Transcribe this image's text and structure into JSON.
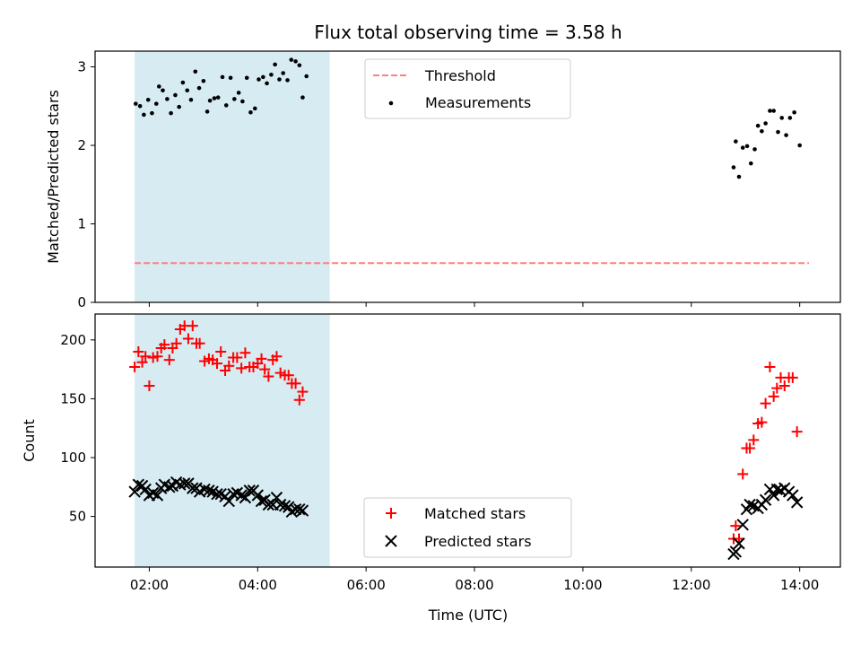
{
  "chart_data": {
    "title": "Flux total observing time = 3.58 h",
    "xlabel": "Time (UTC)",
    "x_ticks": [
      "02:00",
      "04:00",
      "06:00",
      "08:00",
      "10:00",
      "12:00",
      "14:00"
    ],
    "x_tick_values_hours": [
      2,
      4,
      6,
      8,
      10,
      12,
      14
    ],
    "xlim_hours": [
      1.0,
      14.75
    ],
    "shaded_interval_hours": [
      1.73,
      5.33
    ],
    "shade_color": "#add8e6",
    "panels": [
      {
        "type": "scatter",
        "ylabel": "Matched/Predicted stars",
        "ylim": [
          0,
          3.2
        ],
        "y_ticks": [
          0,
          1,
          2,
          3
        ],
        "legend_position": "top-center",
        "threshold": {
          "name": "Threshold",
          "value": 0.5,
          "x_range_hours": [
            1.73,
            14.17
          ],
          "color": "#ff7f7f",
          "style": "dashed"
        },
        "series": [
          {
            "name": "Measurements",
            "marker": "dot",
            "color": "#000000",
            "points": [
              [
                1.75,
                2.53
              ],
              [
                1.83,
                2.5
              ],
              [
                1.9,
                2.39
              ],
              [
                1.98,
                2.58
              ],
              [
                2.05,
                2.41
              ],
              [
                2.13,
                2.53
              ],
              [
                2.18,
                2.75
              ],
              [
                2.25,
                2.7
              ],
              [
                2.33,
                2.59
              ],
              [
                2.4,
                2.41
              ],
              [
                2.48,
                2.64
              ],
              [
                2.55,
                2.49
              ],
              [
                2.62,
                2.8
              ],
              [
                2.7,
                2.7
              ],
              [
                2.77,
                2.58
              ],
              [
                2.85,
                2.94
              ],
              [
                2.92,
                2.73
              ],
              [
                3.0,
                2.82
              ],
              [
                3.07,
                2.43
              ],
              [
                3.12,
                2.57
              ],
              [
                3.2,
                2.6
              ],
              [
                3.27,
                2.61
              ],
              [
                3.35,
                2.87
              ],
              [
                3.42,
                2.51
              ],
              [
                3.5,
                2.86
              ],
              [
                3.57,
                2.59
              ],
              [
                3.65,
                2.67
              ],
              [
                3.72,
                2.56
              ],
              [
                3.8,
                2.86
              ],
              [
                3.87,
                2.42
              ],
              [
                3.95,
                2.47
              ],
              [
                4.02,
                2.84
              ],
              [
                4.1,
                2.87
              ],
              [
                4.17,
                2.79
              ],
              [
                4.25,
                2.9
              ],
              [
                4.32,
                3.03
              ],
              [
                4.4,
                2.84
              ],
              [
                4.47,
                2.92
              ],
              [
                4.55,
                2.83
              ],
              [
                4.62,
                3.09
              ],
              [
                4.7,
                3.07
              ],
              [
                4.77,
                3.02
              ],
              [
                4.83,
                2.61
              ],
              [
                4.9,
                2.88
              ],
              [
                12.78,
                1.72
              ],
              [
                12.82,
                2.05
              ],
              [
                12.88,
                1.6
              ],
              [
                12.95,
                1.97
              ],
              [
                13.03,
                1.99
              ],
              [
                13.1,
                1.77
              ],
              [
                13.17,
                1.95
              ],
              [
                13.23,
                2.25
              ],
              [
                13.3,
                2.18
              ],
              [
                13.37,
                2.28
              ],
              [
                13.45,
                2.44
              ],
              [
                13.52,
                2.44
              ],
              [
                13.6,
                2.17
              ],
              [
                13.67,
                2.35
              ],
              [
                13.75,
                2.13
              ],
              [
                13.82,
                2.35
              ],
              [
                13.9,
                2.42
              ],
              [
                14.0,
                2.0
              ]
            ]
          }
        ]
      },
      {
        "type": "scatter",
        "ylabel": "Count",
        "ylim": [
          7,
          222
        ],
        "y_ticks": [
          50,
          100,
          150,
          200
        ],
        "legend_position": "bottom-center",
        "series": [
          {
            "name": "Matched stars",
            "marker": "plus",
            "color": "#ff0000",
            "points": [
              [
                1.73,
                177
              ],
              [
                1.8,
                190
              ],
              [
                1.87,
                181
              ],
              [
                1.93,
                186
              ],
              [
                2.0,
                161
              ],
              [
                2.07,
                185
              ],
              [
                2.15,
                186
              ],
              [
                2.22,
                193
              ],
              [
                2.28,
                196
              ],
              [
                2.37,
                183
              ],
              [
                2.43,
                193
              ],
              [
                2.5,
                197
              ],
              [
                2.57,
                209
              ],
              [
                2.65,
                212
              ],
              [
                2.72,
                201
              ],
              [
                2.8,
                212
              ],
              [
                2.87,
                197
              ],
              [
                2.93,
                197
              ],
              [
                3.02,
                182
              ],
              [
                3.1,
                184
              ],
              [
                3.17,
                183
              ],
              [
                3.25,
                180
              ],
              [
                3.32,
                190
              ],
              [
                3.4,
                174
              ],
              [
                3.47,
                178
              ],
              [
                3.55,
                185
              ],
              [
                3.62,
                185
              ],
              [
                3.7,
                176
              ],
              [
                3.77,
                189
              ],
              [
                3.85,
                177
              ],
              [
                3.92,
                177
              ],
              [
                4.0,
                180
              ],
              [
                4.07,
                184
              ],
              [
                4.13,
                175
              ],
              [
                4.2,
                169
              ],
              [
                4.28,
                183
              ],
              [
                4.35,
                186
              ],
              [
                4.42,
                172
              ],
              [
                4.5,
                170
              ],
              [
                4.57,
                170
              ],
              [
                4.63,
                163
              ],
              [
                4.7,
                163
              ],
              [
                4.77,
                149
              ],
              [
                4.83,
                156
              ],
              [
                12.78,
                31
              ],
              [
                12.82,
                42
              ],
              [
                12.88,
                31
              ],
              [
                12.95,
                86
              ],
              [
                13.02,
                108
              ],
              [
                13.08,
                108
              ],
              [
                13.15,
                115
              ],
              [
                13.23,
                129
              ],
              [
                13.3,
                130
              ],
              [
                13.37,
                146
              ],
              [
                13.45,
                177
              ],
              [
                13.52,
                152
              ],
              [
                13.58,
                159
              ],
              [
                13.65,
                168
              ],
              [
                13.72,
                161
              ],
              [
                13.8,
                168
              ],
              [
                13.87,
                168
              ],
              [
                13.95,
                122
              ]
            ]
          },
          {
            "name": "Predicted stars",
            "marker": "x",
            "color": "#000000",
            "points": [
              [
                1.73,
                71
              ],
              [
                1.8,
                77
              ],
              [
                1.87,
                76
              ],
              [
                1.93,
                73
              ],
              [
                2.0,
                68
              ],
              [
                2.07,
                70
              ],
              [
                2.15,
                68
              ],
              [
                2.22,
                74
              ],
              [
                2.28,
                77
              ],
              [
                2.37,
                75
              ],
              [
                2.43,
                76
              ],
              [
                2.5,
                79
              ],
              [
                2.57,
                77
              ],
              [
                2.65,
                78
              ],
              [
                2.72,
                78
              ],
              [
                2.8,
                74
              ],
              [
                2.87,
                74
              ],
              [
                2.93,
                71
              ],
              [
                3.02,
                73
              ],
              [
                3.1,
                72
              ],
              [
                3.17,
                71
              ],
              [
                3.25,
                69
              ],
              [
                3.32,
                69
              ],
              [
                3.4,
                67
              ],
              [
                3.47,
                63
              ],
              [
                3.55,
                69
              ],
              [
                3.62,
                70
              ],
              [
                3.7,
                68
              ],
              [
                3.77,
                66
              ],
              [
                3.85,
                72
              ],
              [
                3.92,
                72
              ],
              [
                4.0,
                68
              ],
              [
                4.07,
                63
              ],
              [
                4.13,
                64
              ],
              [
                4.2,
                60
              ],
              [
                4.28,
                60
              ],
              [
                4.35,
                66
              ],
              [
                4.42,
                60
              ],
              [
                4.5,
                59
              ],
              [
                4.57,
                58
              ],
              [
                4.63,
                54
              ],
              [
                4.7,
                56
              ],
              [
                4.77,
                56
              ],
              [
                4.83,
                55
              ],
              [
                12.78,
                18
              ],
              [
                12.82,
                20
              ],
              [
                12.88,
                27
              ],
              [
                12.95,
                43
              ],
              [
                13.02,
                56
              ],
              [
                13.08,
                60
              ],
              [
                13.15,
                59
              ],
              [
                13.23,
                57
              ],
              [
                13.3,
                60
              ],
              [
                13.37,
                64
              ],
              [
                13.45,
                73
              ],
              [
                13.52,
                68
              ],
              [
                13.58,
                73
              ],
              [
                13.65,
                72
              ],
              [
                13.72,
                74
              ],
              [
                13.8,
                71
              ],
              [
                13.87,
                68
              ],
              [
                13.95,
                62
              ]
            ]
          }
        ]
      }
    ]
  }
}
